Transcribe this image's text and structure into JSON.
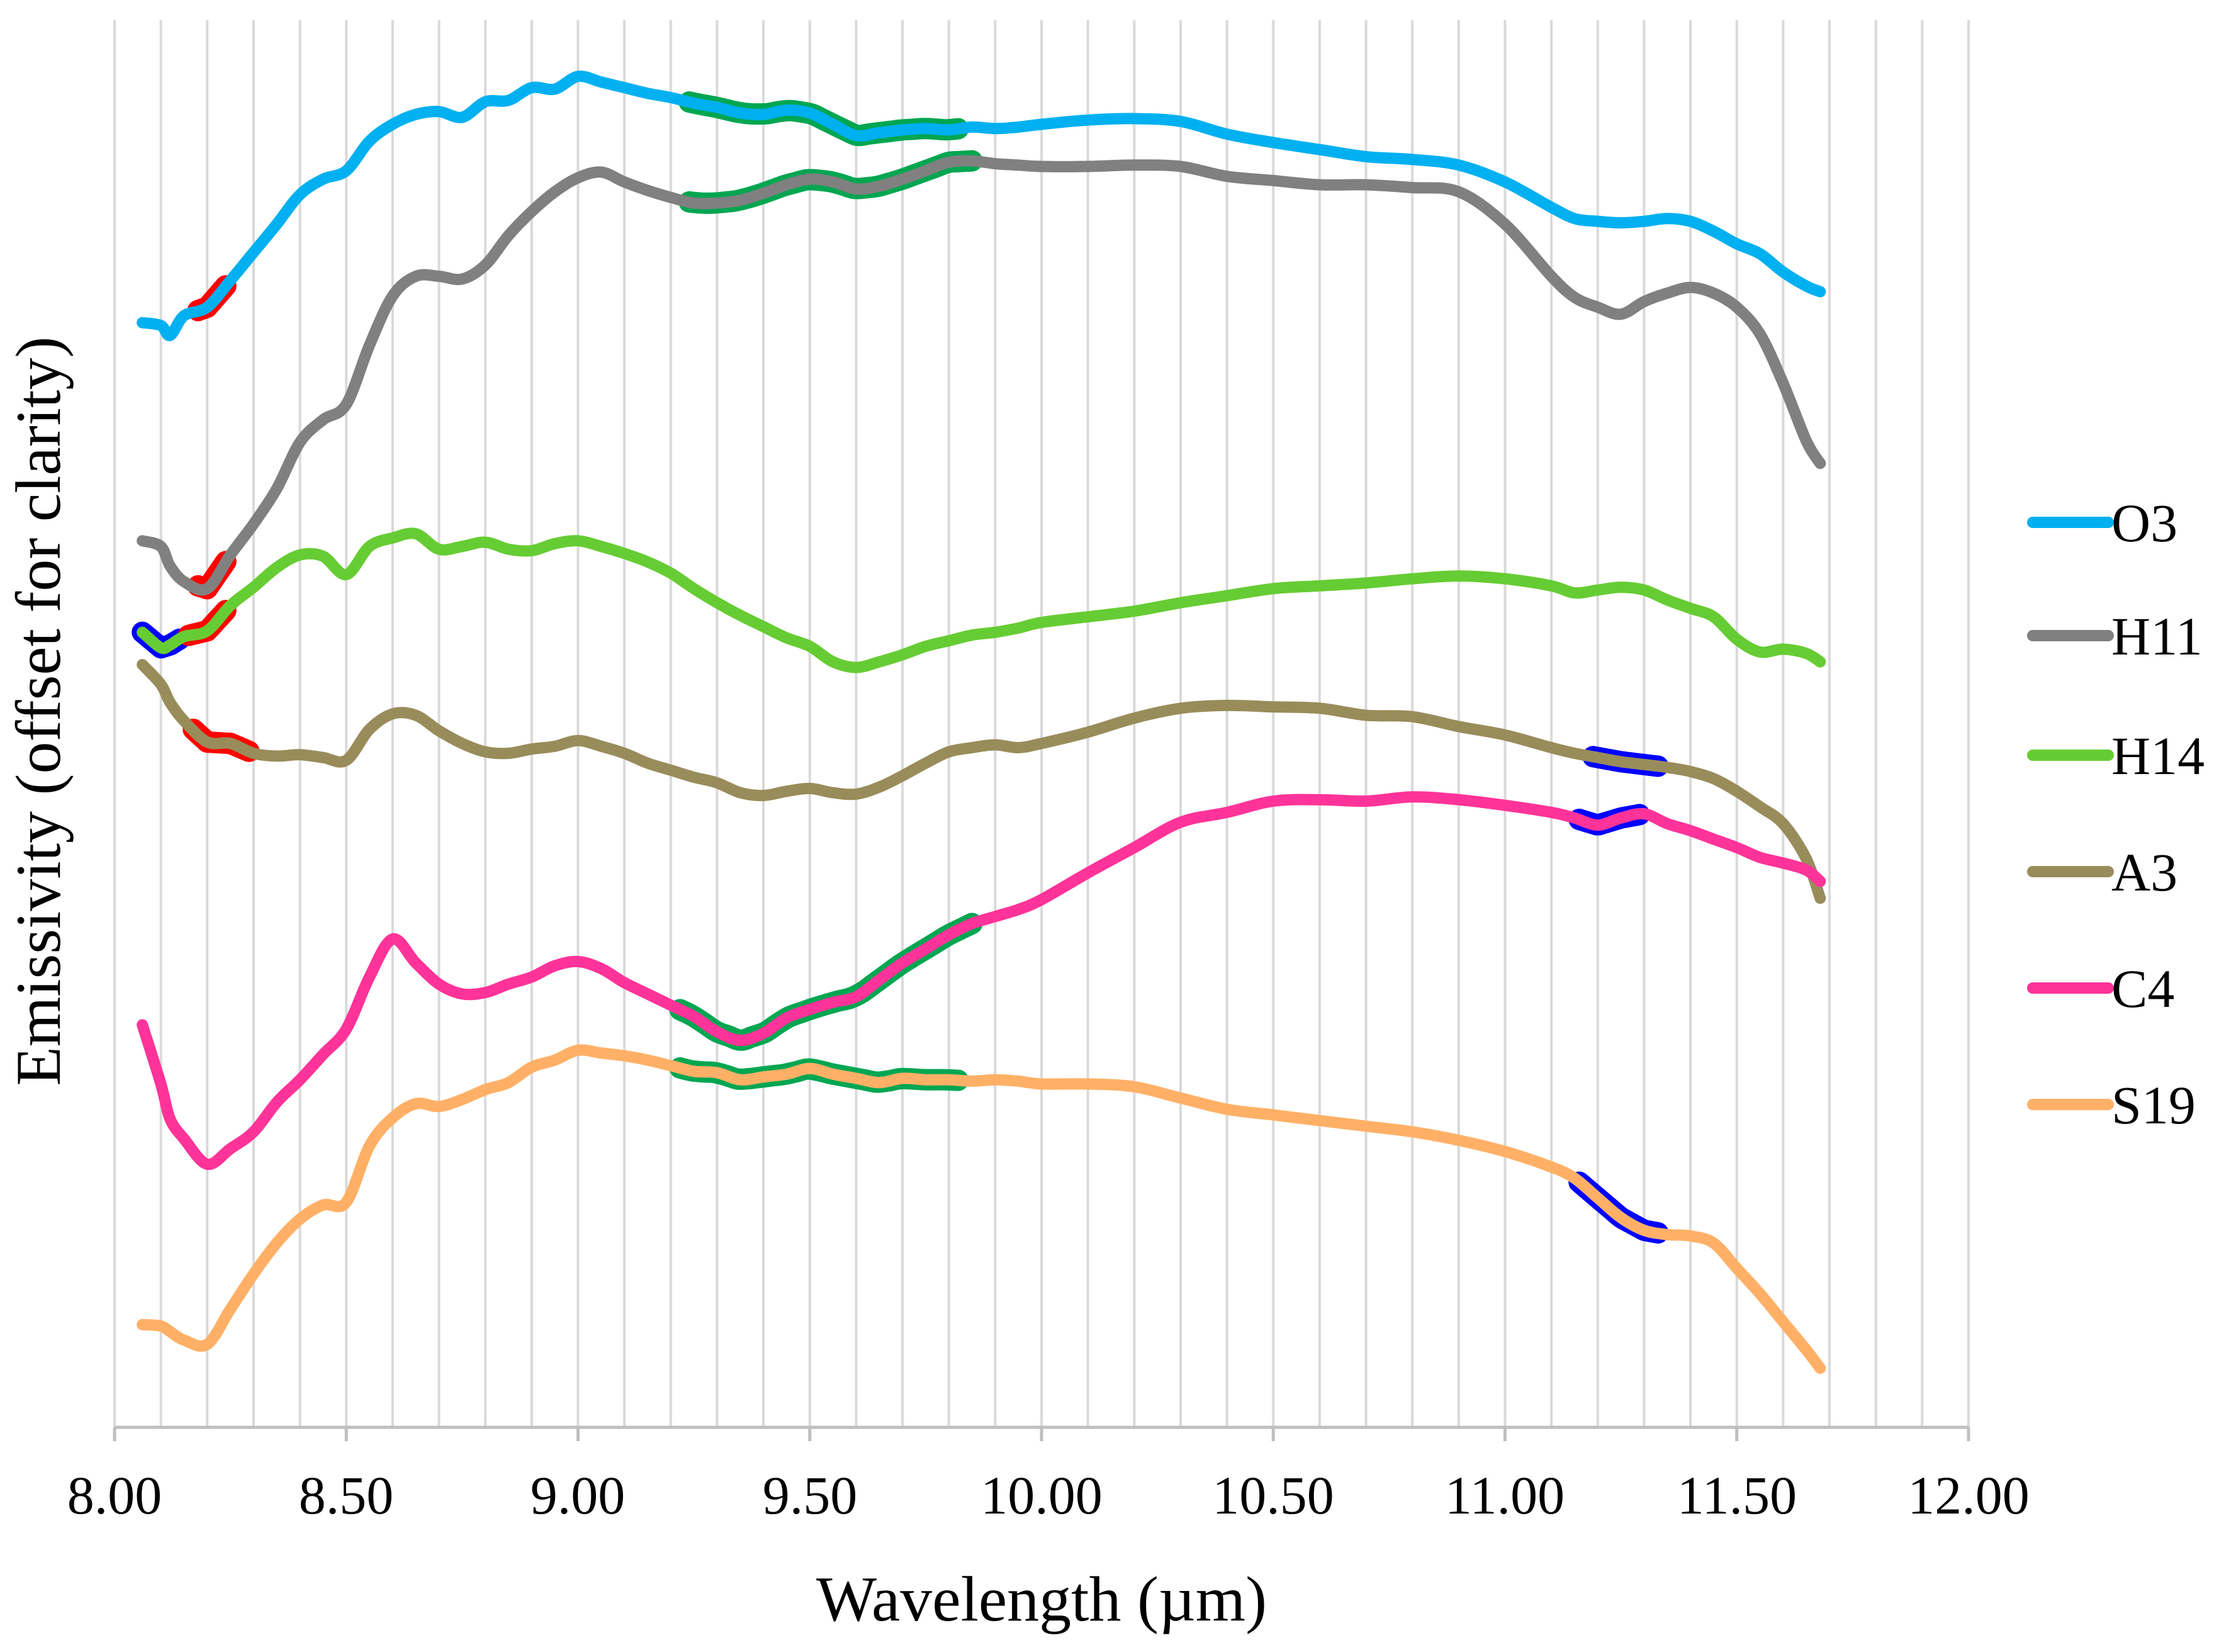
{
  "chart_data": {
    "type": "line",
    "title": "",
    "xlabel": "Wavelength (µm)",
    "ylabel": "Emissivity  (offset for clarity)",
    "xlim": [
      8.0,
      12.0
    ],
    "ylim": [
      0,
      100
    ],
    "x_ticks": [
      "8.00",
      "8.50",
      "9.00",
      "9.50",
      "10.00",
      "10.50",
      "11.00",
      "11.50",
      "12.00"
    ],
    "x_tick_values": [
      8.0,
      8.5,
      9.0,
      9.5,
      10.0,
      10.5,
      11.0,
      11.5,
      12.0
    ],
    "grid_x_step": 0.1,
    "grid": true,
    "legend_position": "right",
    "x": [
      8.06,
      8.1,
      8.12,
      8.15,
      8.2,
      8.25,
      8.3,
      8.35,
      8.4,
      8.45,
      8.5,
      8.55,
      8.6,
      8.65,
      8.7,
      8.75,
      8.8,
      8.85,
      8.9,
      8.95,
      9.0,
      9.05,
      9.1,
      9.15,
      9.2,
      9.25,
      9.3,
      9.35,
      9.4,
      9.45,
      9.5,
      9.55,
      9.6,
      9.65,
      9.7,
      9.75,
      9.8,
      9.85,
      9.9,
      9.95,
      10.0,
      10.1,
      10.2,
      10.3,
      10.4,
      10.5,
      10.6,
      10.7,
      10.8,
      10.9,
      11.0,
      11.1,
      11.15,
      11.2,
      11.25,
      11.3,
      11.35,
      11.4,
      11.45,
      11.5,
      11.55,
      11.6,
      11.65,
      11.68
    ],
    "series": [
      {
        "name": "O3",
        "color": "#00b0f0",
        "values": [
          78.5,
          78.3,
          77.6,
          79.0,
          79.6,
          81.5,
          83.5,
          85.5,
          87.6,
          88.7,
          89.3,
          91.4,
          92.6,
          93.3,
          93.5,
          93.1,
          94.2,
          94.3,
          95.2,
          95.1,
          96.0,
          95.6,
          95.2,
          94.8,
          94.5,
          94.1,
          93.8,
          93.4,
          93.3,
          93.6,
          93.4,
          92.6,
          91.8,
          92.0,
          92.2,
          92.3,
          92.2,
          92.4,
          92.3,
          92.4,
          92.6,
          92.9,
          93.0,
          92.8,
          91.9,
          91.3,
          90.8,
          90.3,
          90.1,
          89.7,
          88.5,
          86.7,
          85.9,
          85.7,
          85.6,
          85.7,
          85.9,
          85.7,
          85.0,
          84.1,
          83.4,
          82.1,
          81.1,
          80.7
        ]
      },
      {
        "name": "H11",
        "color": "#808080",
        "values": [
          63.0,
          62.6,
          61.2,
          60.1,
          59.6,
          62.0,
          64.2,
          66.7,
          70.0,
          71.6,
          72.7,
          76.9,
          80.4,
          81.8,
          81.8,
          81.6,
          82.6,
          84.7,
          86.4,
          87.8,
          88.8,
          89.2,
          88.5,
          87.9,
          87.4,
          87.0,
          87.0,
          87.2,
          87.7,
          88.3,
          88.7,
          88.5,
          88.0,
          88.2,
          88.7,
          89.3,
          89.9,
          90.0,
          89.8,
          89.7,
          89.6,
          89.6,
          89.7,
          89.6,
          88.9,
          88.6,
          88.3,
          88.3,
          88.1,
          87.8,
          85.5,
          81.8,
          80.3,
          79.6,
          79.1,
          80.0,
          80.6,
          81.0,
          80.6,
          79.6,
          77.7,
          74.2,
          70.1,
          68.5
        ]
      },
      {
        "name": "H14",
        "color": "#66cc33",
        "values": [
          56.5,
          55.4,
          55.6,
          56.2,
          56.6,
          58.4,
          59.7,
          61.1,
          62.0,
          61.9,
          60.6,
          62.6,
          63.2,
          63.5,
          62.4,
          62.6,
          62.9,
          62.4,
          62.3,
          62.8,
          63.0,
          62.6,
          62.1,
          61.5,
          60.7,
          59.6,
          58.6,
          57.7,
          56.9,
          56.1,
          55.5,
          54.4,
          54.0,
          54.4,
          54.9,
          55.5,
          55.9,
          56.3,
          56.5,
          56.8,
          57.2,
          57.6,
          58.0,
          58.6,
          59.1,
          59.6,
          59.8,
          60.0,
          60.3,
          60.5,
          60.3,
          59.8,
          59.3,
          59.5,
          59.7,
          59.5,
          58.8,
          58.2,
          57.6,
          56.0,
          55.1,
          55.3,
          55.0,
          54.4
        ]
      },
      {
        "name": "A3",
        "color": "#998c5b",
        "values": [
          54.2,
          52.8,
          51.5,
          50.2,
          48.7,
          48.6,
          47.9,
          47.7,
          47.8,
          47.6,
          47.4,
          49.6,
          50.7,
          50.6,
          49.5,
          48.6,
          48.0,
          47.9,
          48.2,
          48.4,
          48.8,
          48.4,
          47.9,
          47.2,
          46.7,
          46.2,
          45.8,
          45.1,
          44.9,
          45.2,
          45.4,
          45.1,
          45.0,
          45.5,
          46.3,
          47.2,
          48.0,
          48.3,
          48.5,
          48.3,
          48.6,
          49.4,
          50.4,
          51.1,
          51.3,
          51.2,
          51.1,
          50.6,
          50.5,
          49.8,
          49.2,
          48.3,
          47.9,
          47.6,
          47.3,
          47.1,
          46.9,
          46.6,
          46.1,
          45.2,
          44.1,
          42.9,
          40.4,
          37.6
        ]
      },
      {
        "name": "C4",
        "color": "#ff3399",
        "values": [
          28.6,
          24.4,
          21.9,
          20.5,
          18.7,
          19.8,
          21.0,
          23.1,
          24.7,
          26.5,
          28.3,
          32.0,
          34.7,
          33.0,
          31.5,
          30.8,
          30.9,
          31.5,
          32.0,
          32.8,
          33.1,
          32.6,
          31.6,
          30.8,
          30.0,
          29.2,
          28.1,
          27.5,
          28.0,
          29.1,
          29.7,
          30.2,
          30.6,
          31.8,
          33.0,
          34.0,
          35.0,
          35.8,
          36.3,
          36.8,
          37.5,
          39.4,
          41.2,
          43.0,
          43.7,
          44.5,
          44.6,
          44.5,
          44.8,
          44.6,
          44.2,
          43.7,
          43.3,
          42.8,
          43.3,
          43.6,
          42.9,
          42.4,
          41.8,
          41.2,
          40.5,
          40.1,
          39.6,
          38.8
        ]
      },
      {
        "name": "S19",
        "color": "#ffb066",
        "values": [
          7.3,
          7.2,
          6.8,
          6.2,
          5.9,
          8.4,
          10.9,
          13.1,
          14.8,
          15.8,
          16.0,
          20.0,
          22.0,
          23.0,
          22.8,
          23.3,
          24.0,
          24.5,
          25.6,
          26.1,
          26.8,
          26.6,
          26.4,
          26.1,
          25.7,
          25.3,
          25.2,
          24.7,
          24.9,
          25.1,
          25.5,
          25.1,
          24.8,
          24.5,
          24.8,
          24.7,
          24.7,
          24.6,
          24.7,
          24.6,
          24.4,
          24.4,
          24.2,
          23.4,
          22.6,
          22.2,
          21.8,
          21.4,
          21.0,
          20.4,
          19.6,
          18.5,
          17.7,
          16.3,
          14.9,
          14.0,
          13.7,
          13.6,
          13.1,
          11.3,
          9.5,
          7.5,
          5.5,
          4.2
        ]
      }
    ],
    "highlights": [
      {
        "series": "O3",
        "color": "#ff0000",
        "x_range": [
          8.18,
          8.24
        ]
      },
      {
        "series": "O3",
        "color": "#00a651",
        "x_range": [
          9.24,
          9.82
        ]
      },
      {
        "series": "H11",
        "color": "#ff0000",
        "x_range": [
          8.18,
          8.24
        ]
      },
      {
        "series": "H11",
        "color": "#00a651",
        "x_range": [
          9.24,
          9.85
        ]
      },
      {
        "series": "H14",
        "color": "#0000ff",
        "x_range": [
          8.06,
          8.14
        ]
      },
      {
        "series": "H14",
        "color": "#ff0000",
        "x_range": [
          8.16,
          8.24
        ]
      },
      {
        "series": "A3",
        "color": "#ff0000",
        "x_range": [
          8.17,
          8.29
        ]
      },
      {
        "series": "A3",
        "color": "#0000ff",
        "x_range": [
          11.19,
          11.33
        ]
      },
      {
        "series": "C4",
        "color": "#00a651",
        "x_range": [
          9.22,
          9.85
        ]
      },
      {
        "series": "C4",
        "color": "#0000ff",
        "x_range": [
          11.16,
          11.29
        ]
      },
      {
        "series": "S19",
        "color": "#00a651",
        "x_range": [
          9.22,
          9.82
        ]
      },
      {
        "series": "S19",
        "color": "#0000ff",
        "x_range": [
          11.16,
          11.33
        ]
      }
    ]
  }
}
